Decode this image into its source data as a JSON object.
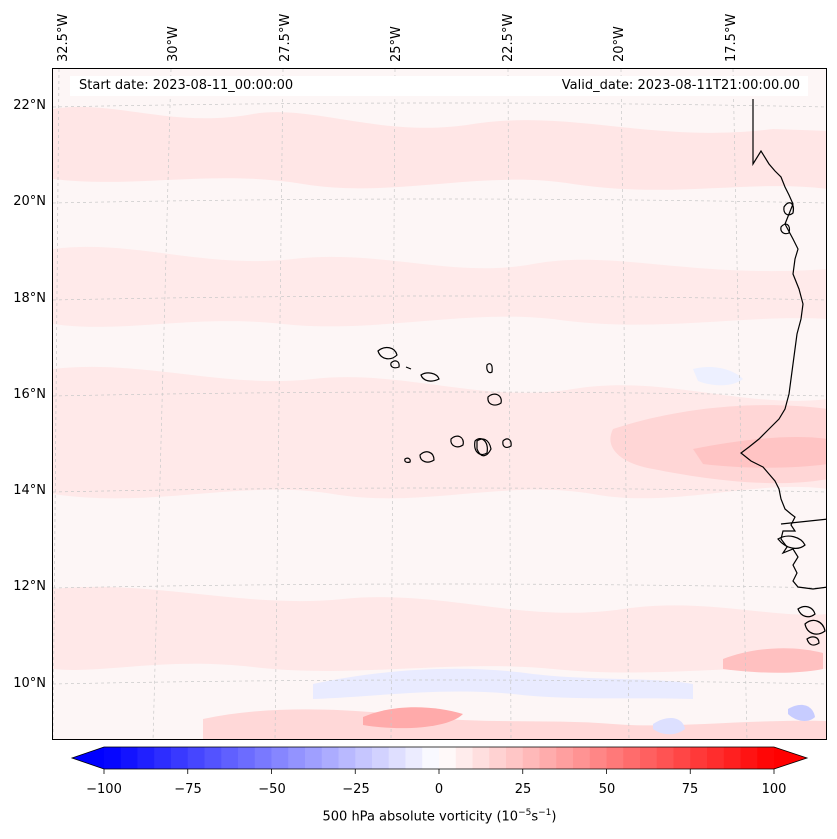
{
  "header": {
    "start_date": "Start date: 2023-08-11_00:00:00",
    "valid_date": "Valid_date: 2023-08-11T21:00:00.00"
  },
  "axes": {
    "lon_labels": [
      "32.5°W",
      "30°W",
      "27.5°W",
      "25°W",
      "22.5°W",
      "20°W",
      "17.5°W"
    ],
    "lat_labels": [
      "22°N",
      "20°N",
      "18°N",
      "16°N",
      "14°N",
      "12°N",
      "10°N"
    ]
  },
  "colorbar": {
    "ticks": [
      "−100",
      "−75",
      "−50",
      "−25",
      "0",
      "25",
      "50",
      "75",
      "100"
    ],
    "label_main": "500 hPa absolute vorticity (10",
    "label_exp1": "−5",
    "label_mid": "s",
    "label_exp2": "−1",
    "label_end": ")",
    "min": -100,
    "max": 100,
    "low_color": "#0000ff",
    "high_color": "#ff0000"
  },
  "colors": {
    "background_tint": "#fdf6f6",
    "positive_light": "#ffe3e3",
    "positive_medium": "#ffc8c8",
    "positive_strong": "#ff8c8c",
    "negative_light": "#e6e8ff",
    "coastline": "#000000",
    "gridline": "#c8c8c8"
  }
}
